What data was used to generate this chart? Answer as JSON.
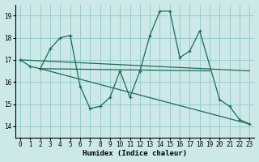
{
  "background_color": "#cce8e8",
  "grid_color": "#99cccc",
  "line_color": "#1a6b5a",
  "xlabel": "Humidex (Indice chaleur)",
  "xlim": [
    -0.5,
    23.5
  ],
  "ylim": [
    13.5,
    19.5
  ],
  "xticks": [
    0,
    1,
    2,
    3,
    4,
    5,
    6,
    7,
    8,
    9,
    10,
    11,
    12,
    13,
    14,
    15,
    16,
    17,
    18,
    19,
    20,
    21,
    22,
    23
  ],
  "yticks": [
    14,
    15,
    16,
    17,
    18,
    19
  ],
  "series0": {
    "x": [
      0,
      1,
      2,
      3,
      4,
      5,
      6,
      7,
      8,
      9,
      10,
      11,
      12,
      13,
      14,
      15,
      16,
      17,
      18,
      20,
      21,
      22,
      23
    ],
    "y": [
      17.0,
      16.7,
      16.6,
      17.5,
      18.0,
      18.1,
      15.8,
      14.8,
      14.9,
      15.3,
      16.5,
      15.3,
      16.5,
      18.1,
      19.2,
      19.2,
      17.1,
      17.4,
      18.3,
      15.2,
      14.9,
      14.3,
      14.1
    ]
  },
  "line1": {
    "x": [
      0,
      23
    ],
    "y": [
      17.0,
      16.5
    ]
  },
  "line2": {
    "x": [
      2,
      23
    ],
    "y": [
      16.6,
      14.1
    ]
  },
  "line3": {
    "x": [
      2,
      19
    ],
    "y": [
      16.6,
      16.5
    ]
  }
}
